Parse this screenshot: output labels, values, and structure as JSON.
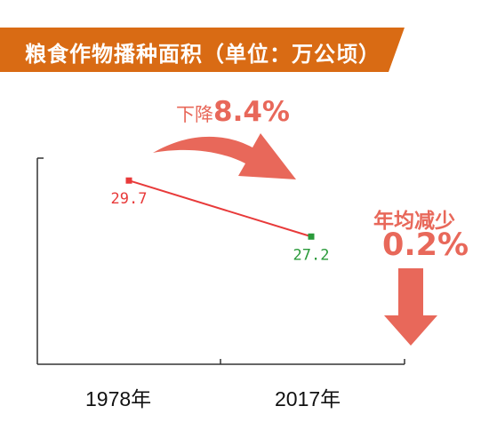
{
  "title": "粮食作物播种面积（单位：万公顷）",
  "annotations": {
    "drop_prefix": "下降",
    "drop_value": "8.4%",
    "avg_label": "年均减少",
    "avg_value": "0.2%"
  },
  "colors": {
    "banner": "#d96b14",
    "line": "#e83a3a",
    "point_start": "#e83a3a",
    "point_end": "#2a9a3a",
    "arrow": "#e8685a",
    "axis": "#333333"
  },
  "chart_data": {
    "type": "line",
    "title": "粮食作物播种面积（单位：万公顷）",
    "categories": [
      "1978年",
      "2017年"
    ],
    "series": [
      {
        "values": [
          29.7,
          27.2
        ]
      }
    ],
    "data_labels": [
      "29.7",
      "27.2"
    ],
    "ylim": [
      21.5,
      30.7
    ],
    "grid": false,
    "legend": "none"
  }
}
